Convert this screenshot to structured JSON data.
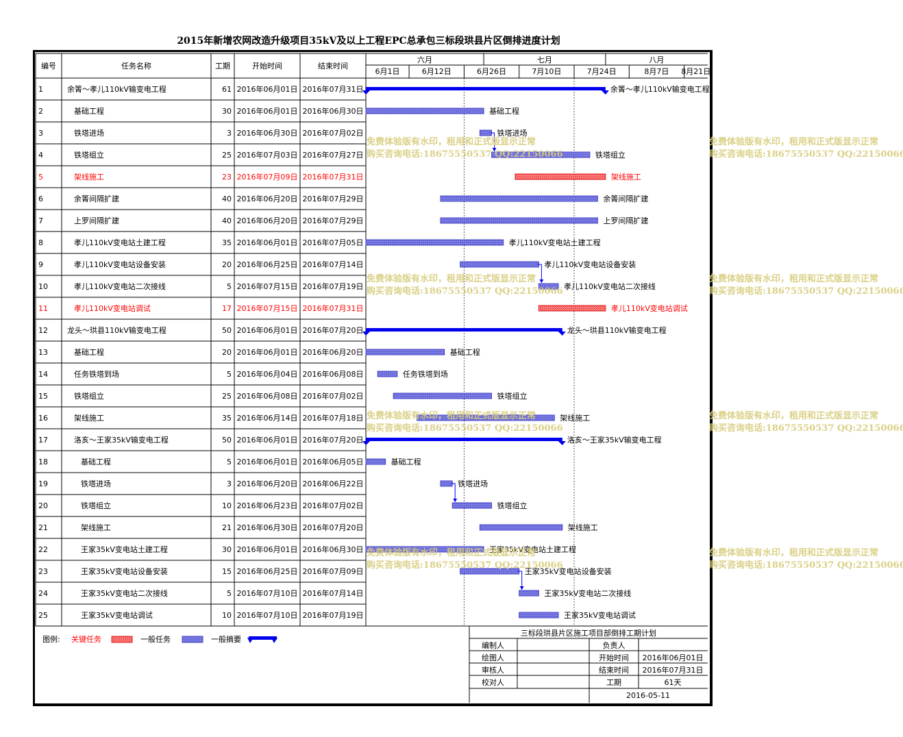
{
  "title": "2015年新增农网改造升级项目35kV及以上工程EPC总承包三标段珙县片区倒排进度计划",
  "headers": {
    "id": "编号",
    "name": "任务名称",
    "duration": "工期",
    "start": "开始时间",
    "end": "结束时间"
  },
  "months": [
    "六月",
    "七月",
    "八月"
  ],
  "weeks": [
    "6月1日",
    "6月12日",
    "6月26日",
    "7月10日",
    "7月24日",
    "8月7日",
    "8月21日"
  ],
  "colors": {
    "summary": "#0000ee",
    "task": "#4646c8",
    "task_fill": "#8080e6",
    "critical": "#dd2222",
    "critical_fill": "#ff8080",
    "grid": "#000000",
    "watermark": "#d6cc7a"
  },
  "chart_data": {
    "type": "gantt",
    "x_axis": "date",
    "x_range": [
      "2016-06-01",
      "2016-08-27"
    ],
    "tasks": [
      {
        "id": "1",
        "name": "余箐～孝儿110kV输变电工程",
        "duration": "61",
        "start": "2016年06月01日",
        "end": "2016年07月31日",
        "s": "2016-06-01",
        "e": "2016-07-31",
        "kind": "summary",
        "indent": 0,
        "label": "余箐～孝儿110kV输变电工程"
      },
      {
        "id": "2",
        "name": "基础工程",
        "duration": "30",
        "start": "2016年06月01日",
        "end": "2016年06月30日",
        "s": "2016-06-01",
        "e": "2016-06-30",
        "kind": "task",
        "indent": 1,
        "label": "基础工程"
      },
      {
        "id": "3",
        "name": "铁塔进场",
        "duration": "3",
        "start": "2016年06月30日",
        "end": "2016年07月02日",
        "s": "2016-06-30",
        "e": "2016-07-02",
        "kind": "task",
        "indent": 1,
        "label": "铁塔进场"
      },
      {
        "id": "4",
        "name": "铁塔组立",
        "duration": "25",
        "start": "2016年07月03日",
        "end": "2016年07月27日",
        "s": "2016-07-03",
        "e": "2016-07-27",
        "kind": "task",
        "indent": 1,
        "label": "铁塔组立"
      },
      {
        "id": "5",
        "name": "架线施工",
        "duration": "23",
        "start": "2016年07月09日",
        "end": "2016年07月31日",
        "s": "2016-07-09",
        "e": "2016-07-31",
        "kind": "critical",
        "indent": 1,
        "label": "架线施工"
      },
      {
        "id": "6",
        "name": "余箐间隔扩建",
        "duration": "40",
        "start": "2016年06月20日",
        "end": "2016年07月29日",
        "s": "2016-06-20",
        "e": "2016-07-29",
        "kind": "task",
        "indent": 1,
        "label": "余箐间隔扩建"
      },
      {
        "id": "7",
        "name": "上罗间隔扩建",
        "duration": "40",
        "start": "2016年06月20日",
        "end": "2016年07月29日",
        "s": "2016-06-20",
        "e": "2016-07-29",
        "kind": "task",
        "indent": 1,
        "label": "上罗间隔扩建"
      },
      {
        "id": "8",
        "name": "孝儿110kV变电站土建工程",
        "duration": "35",
        "start": "2016年06月01日",
        "end": "2016年07月05日",
        "s": "2016-06-01",
        "e": "2016-07-05",
        "kind": "task",
        "indent": 1,
        "label": "孝儿110kV变电站土建工程"
      },
      {
        "id": "9",
        "name": "孝儿110kV变电站设备安装",
        "duration": "20",
        "start": "2016年06月25日",
        "end": "2016年07月14日",
        "s": "2016-06-25",
        "e": "2016-07-14",
        "kind": "task",
        "indent": 1,
        "label": "孝儿110kV变电站设备安装"
      },
      {
        "id": "10",
        "name": "孝儿110kV变电站二次接线",
        "duration": "5",
        "start": "2016年07月15日",
        "end": "2016年07月19日",
        "s": "2016-07-15",
        "e": "2016-07-19",
        "kind": "task",
        "indent": 1,
        "label": "孝儿110kV变电站二次接线"
      },
      {
        "id": "11",
        "name": "孝儿110kV变电站调试",
        "duration": "17",
        "start": "2016年07月15日",
        "end": "2016年07月31日",
        "s": "2016-07-15",
        "e": "2016-07-31",
        "kind": "critical",
        "indent": 1,
        "label": "孝儿110kV变电站调试"
      },
      {
        "id": "12",
        "name": "龙头～珙县110kV输变电工程",
        "duration": "50",
        "start": "2016年06月01日",
        "end": "2016年07月20日",
        "s": "2016-06-01",
        "e": "2016-07-20",
        "kind": "summary",
        "indent": 0,
        "label": "龙头～珙县110kV输变电工程"
      },
      {
        "id": "13",
        "name": "基础工程",
        "duration": "20",
        "start": "2016年06月01日",
        "end": "2016年06月20日",
        "s": "2016-06-01",
        "e": "2016-06-20",
        "kind": "task",
        "indent": 1,
        "label": "基础工程"
      },
      {
        "id": "14",
        "name": "任务铁塔到场",
        "duration": "5",
        "start": "2016年06月04日",
        "end": "2016年06月08日",
        "s": "2016-06-04",
        "e": "2016-06-08",
        "kind": "task",
        "indent": 1,
        "label": "任务铁塔到场"
      },
      {
        "id": "15",
        "name": "铁塔组立",
        "duration": "25",
        "start": "2016年06月08日",
        "end": "2016年07月02日",
        "s": "2016-06-08",
        "e": "2016-07-02",
        "kind": "task",
        "indent": 1,
        "label": "铁塔组立"
      },
      {
        "id": "16",
        "name": "架线施工",
        "duration": "35",
        "start": "2016年06月14日",
        "end": "2016年07月18日",
        "s": "2016-06-14",
        "e": "2016-07-18",
        "kind": "task",
        "indent": 1,
        "label": "架线施工"
      },
      {
        "id": "17",
        "name": "洛亥～王家35kV输变电工程",
        "duration": "50",
        "start": "2016年06月01日",
        "end": "2016年07月20日",
        "s": "2016-06-01",
        "e": "2016-07-20",
        "kind": "summary",
        "indent": 1,
        "label": "洛亥～王家35kV输变电工程"
      },
      {
        "id": "18",
        "name": "基础工程",
        "duration": "5",
        "start": "2016年06月01日",
        "end": "2016年06月05日",
        "s": "2016-06-01",
        "e": "2016-06-05",
        "kind": "task",
        "indent": 2,
        "label": "基础工程"
      },
      {
        "id": "19",
        "name": "铁塔进场",
        "duration": "3",
        "start": "2016年06月20日",
        "end": "2016年06月22日",
        "s": "2016-06-20",
        "e": "2016-06-22",
        "kind": "task",
        "indent": 2,
        "label": "铁塔进场"
      },
      {
        "id": "20",
        "name": "铁塔组立",
        "duration": "10",
        "start": "2016年06月23日",
        "end": "2016年07月02日",
        "s": "2016-06-23",
        "e": "2016-07-02",
        "kind": "task",
        "indent": 2,
        "label": "铁塔组立"
      },
      {
        "id": "21",
        "name": "架线施工",
        "duration": "21",
        "start": "2016年06月30日",
        "end": "2016年07月20日",
        "s": "2016-06-30",
        "e": "2016-07-20",
        "kind": "task",
        "indent": 2,
        "label": "架线施工"
      },
      {
        "id": "22",
        "name": "王家35kV变电站土建工程",
        "duration": "30",
        "start": "2016年06月01日",
        "end": "2016年06月30日",
        "s": "2016-06-01",
        "e": "2016-06-30",
        "kind": "task",
        "indent": 2,
        "label": "王家35kV变电站土建工程"
      },
      {
        "id": "23",
        "name": "王家35kV变电站设备安装",
        "duration": "15",
        "start": "2016年06月25日",
        "end": "2016年07月09日",
        "s": "2016-06-25",
        "e": "2016-07-09",
        "kind": "task",
        "indent": 2,
        "label": "王家35kV变电站设备安装"
      },
      {
        "id": "24",
        "name": "王家35kV变电站二次接线",
        "duration": "5",
        "start": "2016年07月10日",
        "end": "2016年07月14日",
        "s": "2016-07-10",
        "e": "2016-07-14",
        "kind": "task",
        "indent": 2,
        "label": "王家35kV变电站二次接线"
      },
      {
        "id": "25",
        "name": "王家35kV变电站调试",
        "duration": "10",
        "start": "2016年07月10日",
        "end": "2016年07月19日",
        "s": "2016-07-10",
        "e": "2016-07-19",
        "kind": "task",
        "indent": 2,
        "label": "王家35kV变电站调试"
      }
    ],
    "links": [
      [
        "3",
        "4"
      ],
      [
        "9",
        "10"
      ],
      [
        "19",
        "20"
      ],
      [
        "23",
        "24"
      ]
    ]
  },
  "legend": {
    "label": "图例:",
    "critical": "关键任务",
    "task": "一般任务",
    "summary": "一般摘要"
  },
  "info": {
    "heading": "三标段珙县片区施工项目部倒排工期计划",
    "rows": [
      [
        "编制人",
        "",
        "负责人",
        ""
      ],
      [
        "绘图人",
        "",
        "开始时间",
        "2016年06月01日"
      ],
      [
        "审核人",
        "",
        "结束时间",
        "2016年07月31日"
      ],
      [
        "校对人",
        "",
        "工期",
        "61天"
      ]
    ],
    "date": "2016-05-11"
  },
  "watermark": {
    "line1": "免费体验版有水印，租用和正式版显示正常",
    "line2": "购买咨询电话:18675550537 QQ:22150066"
  }
}
